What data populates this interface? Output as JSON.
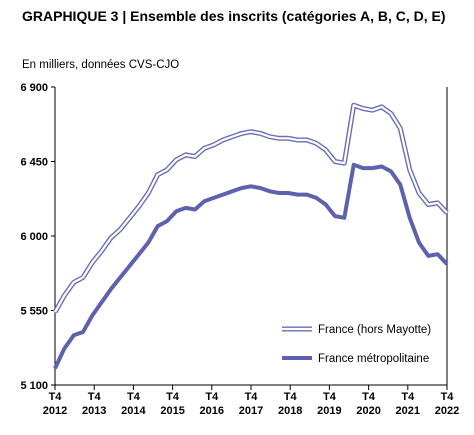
{
  "title": "GRAPHIQUE 3 | Ensemble des inscrits (catégories A, B, C, D, E)",
  "subtitle": "En milliers, données CVS-CJO",
  "colors": {
    "france_outline": "#6a6fb4",
    "france_fill": "#ffffff",
    "metro": "#5c62ad",
    "axis": "#000000",
    "grid": "#d9d9d9"
  },
  "chart_data": {
    "type": "line",
    "title": "Ensemble des inscrits (catégories A, B, C, D, E)",
    "ylabel": "En milliers, données CVS-CJO",
    "ylim": [
      5100,
      6900
    ],
    "yticks": [
      {
        "value": 5100,
        "label": "5 100"
      },
      {
        "value": 5550,
        "label": "5 550"
      },
      {
        "value": 6000,
        "label": "6 000"
      },
      {
        "value": 6450,
        "label": "6 450"
      },
      {
        "value": 6900,
        "label": "6 900"
      }
    ],
    "xticks": [
      {
        "top": "T4",
        "bottom": "2012"
      },
      {
        "top": "T4",
        "bottom": "2013"
      },
      {
        "top": "T4",
        "bottom": "2014"
      },
      {
        "top": "T4",
        "bottom": "2015"
      },
      {
        "top": "T4",
        "bottom": "2016"
      },
      {
        "top": "T4",
        "bottom": "2017"
      },
      {
        "top": "T4",
        "bottom": "2018"
      },
      {
        "top": "T4",
        "bottom": "2019"
      },
      {
        "top": "T4",
        "bottom": "2020"
      },
      {
        "top": "T4",
        "bottom": "2021"
      },
      {
        "top": "T4",
        "bottom": "2022"
      }
    ],
    "legend_position": "bottom-right",
    "grid": false,
    "series": [
      {
        "name": "France (hors Mayotte)",
        "style": "double",
        "values": [
          5540,
          5640,
          5720,
          5750,
          5840,
          5910,
          5990,
          6040,
          6110,
          6180,
          6260,
          6370,
          6400,
          6460,
          6490,
          6480,
          6530,
          6550,
          6580,
          6600,
          6620,
          6630,
          6620,
          6600,
          6590,
          6590,
          6580,
          6580,
          6560,
          6520,
          6450,
          6440,
          6790,
          6770,
          6760,
          6780,
          6740,
          6650,
          6400,
          6260,
          6190,
          6200,
          6140
        ]
      },
      {
        "name": "France métropolitaine",
        "style": "solid",
        "values": [
          5200,
          5320,
          5400,
          5420,
          5520,
          5600,
          5680,
          5750,
          5820,
          5890,
          5960,
          6060,
          6090,
          6150,
          6170,
          6160,
          6210,
          6230,
          6250,
          6270,
          6290,
          6300,
          6290,
          6270,
          6260,
          6260,
          6250,
          6250,
          6230,
          6190,
          6120,
          6110,
          6430,
          6410,
          6410,
          6420,
          6390,
          6310,
          6110,
          5960,
          5880,
          5890,
          5830
        ]
      }
    ]
  }
}
